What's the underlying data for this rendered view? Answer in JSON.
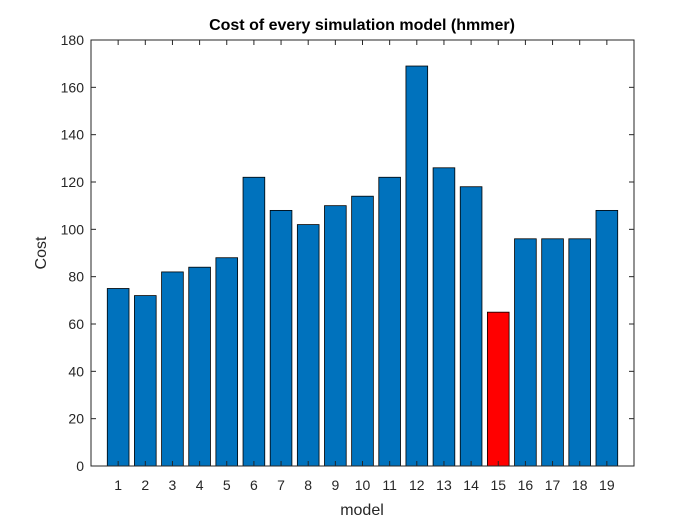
{
  "chart_data": {
    "type": "bar",
    "title": "Cost of every simulation model (hmmer)",
    "xlabel": "model",
    "ylabel": "Cost",
    "categories": [
      "1",
      "2",
      "3",
      "4",
      "5",
      "6",
      "7",
      "8",
      "9",
      "10",
      "11",
      "12",
      "13",
      "14",
      "15",
      "16",
      "17",
      "18",
      "19"
    ],
    "values": [
      75,
      72,
      82,
      84,
      88,
      122,
      108,
      102,
      110,
      114,
      122,
      169,
      126,
      118,
      65,
      96,
      96,
      96,
      108
    ],
    "ylim": [
      0,
      180
    ],
    "yticks": [
      0,
      20,
      40,
      60,
      80,
      100,
      120,
      140,
      160,
      180
    ],
    "grid": false,
    "highlight_index": 14,
    "colors": {
      "bar": "#0072BD",
      "highlight": "#FF0000",
      "edge": "#000000",
      "axis": "#262626"
    }
  }
}
